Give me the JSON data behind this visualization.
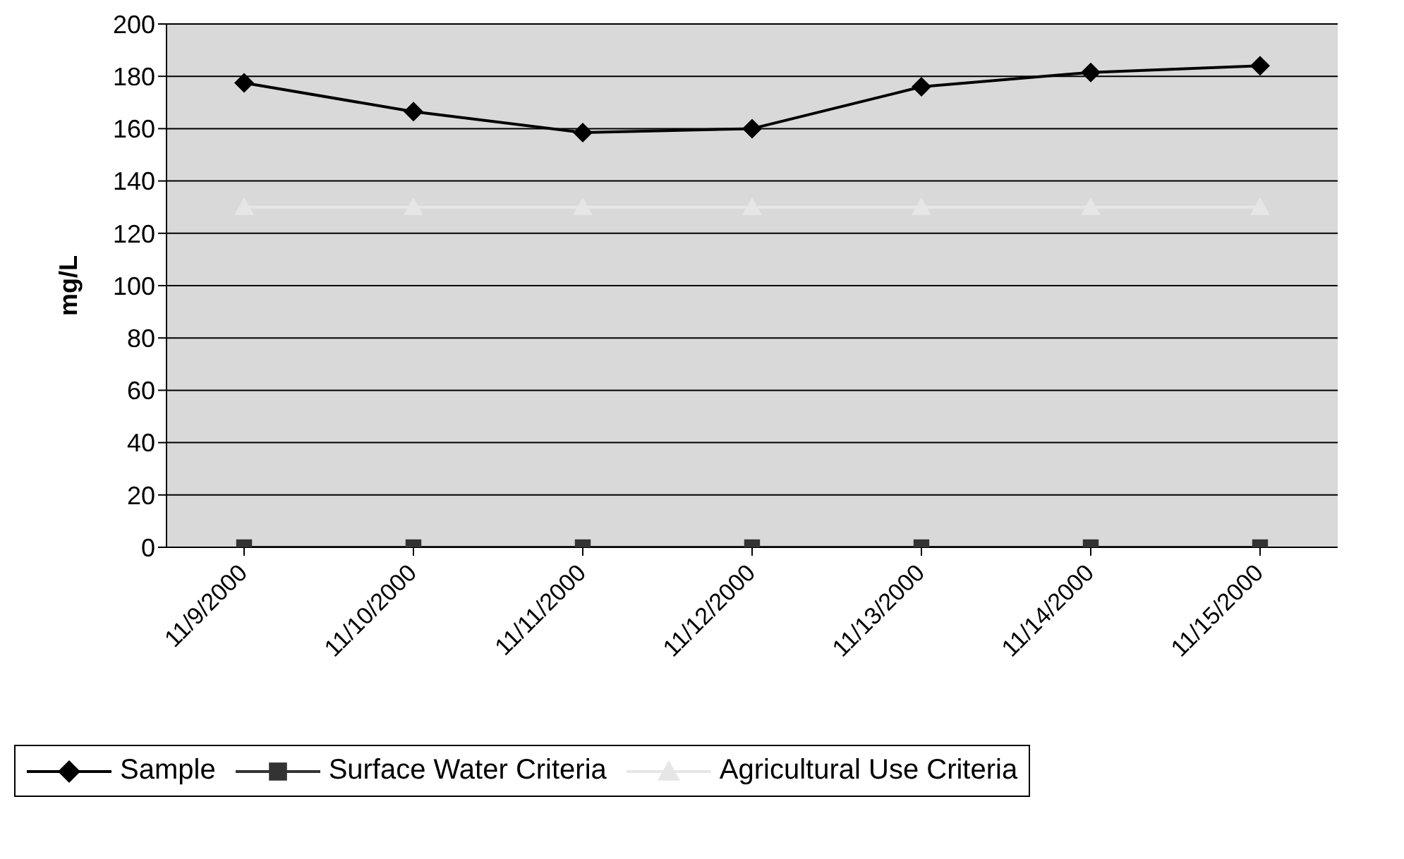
{
  "chart_data": {
    "type": "line",
    "ylabel": "mg/L",
    "categories": [
      "11/9/2000",
      "11/10/2000",
      "11/11/2000",
      "11/12/2000",
      "11/13/2000",
      "11/14/2000",
      "11/15/2000"
    ],
    "series": [
      {
        "name": "Sample",
        "color": "#000000",
        "marker": "diamond",
        "values": [
          177.5,
          166.5,
          158.5,
          160,
          176,
          181.5,
          184
        ]
      },
      {
        "name": "Surface Water Criteria",
        "color": "#333333",
        "marker": "square",
        "values": [
          0,
          0,
          0,
          0,
          0,
          0,
          0
        ]
      },
      {
        "name": "Agricultural Use Criteria",
        "color": "#e6e6e6",
        "marker": "triangle",
        "values": [
          130,
          130,
          130,
          130,
          130,
          130,
          130
        ]
      }
    ],
    "ylim": [
      0,
      200
    ],
    "yticks": [
      0,
      20,
      40,
      60,
      80,
      100,
      120,
      140,
      160,
      180,
      200
    ],
    "grid": "y",
    "legend": "bottom"
  }
}
